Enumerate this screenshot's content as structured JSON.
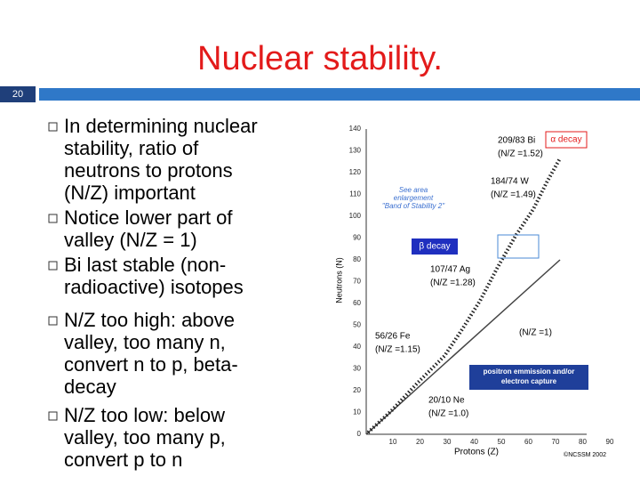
{
  "header": {
    "title": "Nuclear stability.",
    "slide_number": "20"
  },
  "bullets": [
    {
      "lines": [
        "In determining nuclear",
        "stability, ratio of",
        "neutrons to protons",
        "(N/Z) important"
      ]
    },
    {
      "lines": [
        "Notice lower part of",
        "valley (N/Z = 1)"
      ]
    },
    {
      "lines": [
        "Bi last stable (non-",
        "radioactive) isotopes"
      ]
    },
    {
      "lines": [
        "N/Z too high: above",
        "valley, too many n,",
        "convert n to p, beta-",
        "decay"
      ]
    },
    {
      "lines": [
        "N/Z too low: below",
        "valley, too many p,",
        "convert p to n"
      ]
    }
  ],
  "figure": {
    "y_label": "Neutrons (N)",
    "x_label": "Protons (Z)",
    "credit": "©NCSSM 2002",
    "y_ticks": [
      "0",
      "10",
      "20",
      "30",
      "40",
      "50",
      "60",
      "70",
      "80",
      "90",
      "100",
      "110",
      "120",
      "130",
      "140"
    ],
    "x_ticks": [
      "10",
      "20",
      "30",
      "40",
      "50",
      "60",
      "70",
      "80",
      "90"
    ],
    "alpha_box": "α decay",
    "beta_box": "β decay",
    "positron_box": [
      "positron emmission and/or",
      "electron capture"
    ],
    "enlarge_note": [
      "See area",
      "enlargement",
      "\"Band of Stability 2\""
    ],
    "isotopes": [
      {
        "name": "209/83 Bi",
        "ratio": "(N/Z =1.52)"
      },
      {
        "name": "184/74 W",
        "ratio": "(N/Z =1.49)"
      },
      {
        "name": "107/47 Ag",
        "ratio": "(N/Z =1.28)"
      },
      {
        "name": "56/26 Fe",
        "ratio": "(N/Z =1.15)"
      },
      {
        "name": "20/10 Ne",
        "ratio": "(N/Z =1.0)"
      }
    ],
    "unity_line": "(N/Z =1)"
  }
}
